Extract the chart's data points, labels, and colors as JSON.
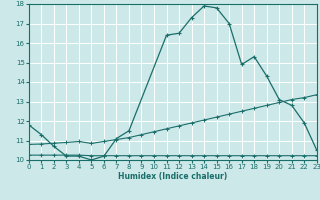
{
  "xlabel": "Humidex (Indice chaleur)",
  "bg_color": "#cce8e8",
  "grid_color": "#b8d8d8",
  "line_color": "#1a6e6a",
  "xlim": [
    0,
    23
  ],
  "ylim": [
    10,
    18
  ],
  "xticks": [
    0,
    1,
    2,
    3,
    4,
    5,
    6,
    7,
    8,
    9,
    10,
    11,
    12,
    13,
    14,
    15,
    16,
    17,
    18,
    19,
    20,
    21,
    22,
    23
  ],
  "yticks": [
    10,
    11,
    12,
    13,
    14,
    15,
    16,
    17,
    18
  ],
  "s1_x": [
    0,
    1,
    2,
    3,
    4,
    5,
    6,
    7,
    8,
    11,
    12,
    13,
    14,
    15,
    16,
    17,
    18,
    19,
    20,
    21,
    22,
    23
  ],
  "s1_y": [
    11.8,
    11.3,
    10.7,
    10.2,
    10.2,
    10.0,
    10.2,
    11.1,
    11.5,
    16.4,
    16.5,
    17.3,
    17.9,
    17.8,
    17.0,
    14.9,
    15.3,
    14.3,
    13.1,
    12.8,
    11.9,
    10.5
  ],
  "s2_x": [
    0,
    1,
    2,
    3,
    4,
    5,
    6,
    7,
    8,
    9,
    10,
    11,
    12,
    13,
    14,
    15,
    16,
    17,
    18,
    19,
    20,
    21,
    22,
    23
  ],
  "s2_y": [
    10.8,
    10.82,
    10.86,
    10.9,
    10.95,
    10.85,
    10.95,
    11.05,
    11.15,
    11.3,
    11.45,
    11.6,
    11.75,
    11.9,
    12.05,
    12.2,
    12.35,
    12.5,
    12.65,
    12.8,
    12.95,
    13.1,
    13.2,
    13.35
  ],
  "s3_x": [
    0,
    1,
    2,
    3,
    4,
    5,
    6,
    7,
    8,
    9,
    10,
    11,
    12,
    13,
    14,
    15,
    16,
    17,
    18,
    19,
    20,
    21,
    22,
    23
  ],
  "s3_y": [
    10.25,
    10.25,
    10.25,
    10.25,
    10.25,
    10.22,
    10.22,
    10.22,
    10.22,
    10.22,
    10.22,
    10.22,
    10.22,
    10.22,
    10.22,
    10.22,
    10.22,
    10.22,
    10.22,
    10.22,
    10.22,
    10.22,
    10.22,
    10.22
  ]
}
